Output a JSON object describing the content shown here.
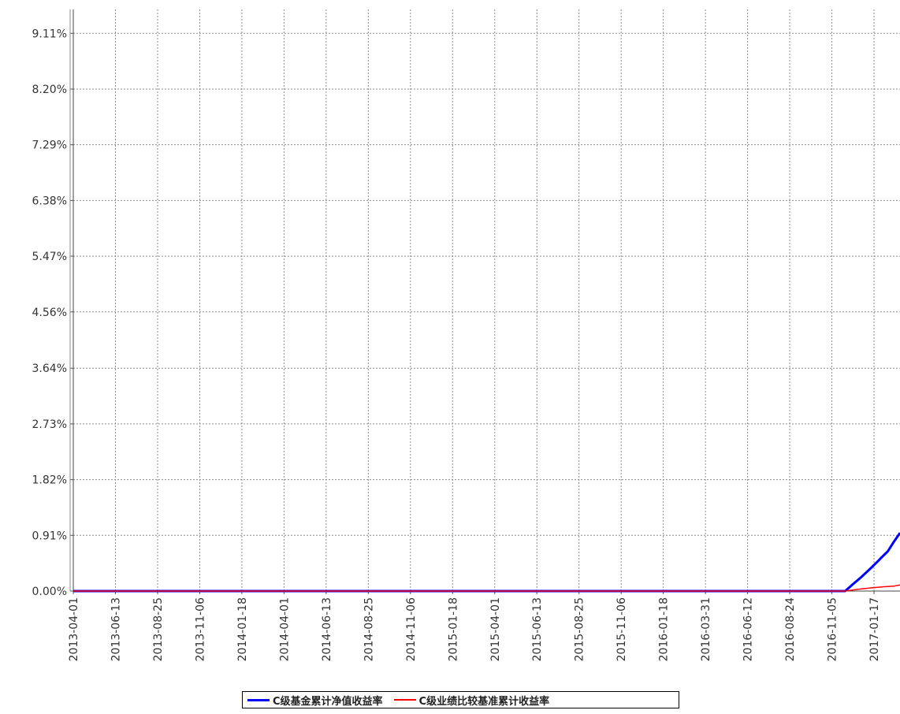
{
  "chart_data": {
    "type": "line",
    "title": "",
    "xlabel": "",
    "ylabel": "",
    "ylim": [
      0,
      9.5
    ],
    "y_ticks": [
      "0.00%",
      "0.91%",
      "1.82%",
      "2.73%",
      "3.64%",
      "4.56%",
      "5.47%",
      "6.38%",
      "7.29%",
      "8.20%",
      "9.11%"
    ],
    "y_tick_values": [
      0,
      0.91,
      1.82,
      2.73,
      3.64,
      4.56,
      5.47,
      6.38,
      7.29,
      8.2,
      9.11
    ],
    "x_ticks": [
      "2013-04-01",
      "2013-06-13",
      "2013-08-25",
      "2013-11-06",
      "2014-01-18",
      "2014-04-01",
      "2014-06-13",
      "2014-08-25",
      "2014-11-06",
      "2015-01-18",
      "2015-04-01",
      "2015-06-13",
      "2015-08-25",
      "2015-11-06",
      "2016-01-18",
      "2016-03-31",
      "2016-06-12",
      "2016-08-24",
      "2016-11-05",
      "2017-01-17"
    ],
    "xlim": [
      "2013-04-01",
      "2017-03-03"
    ],
    "grid": true,
    "legend_position": "bottom-center",
    "series": [
      {
        "name": "C级基金累计净值收益率",
        "color": "#0000ff",
        "x": [
          "2013-04-01",
          "2016-11-28",
          "2016-12-10",
          "2016-12-25",
          "2017-01-10",
          "2017-01-25",
          "2017-01-30",
          "2017-02-10",
          "2017-02-20",
          "2017-03-03"
        ],
        "y": [
          0.0,
          0.0,
          0.1,
          0.22,
          0.36,
          0.5,
          0.55,
          0.65,
          0.8,
          0.95
        ]
      },
      {
        "name": "C级业绩比较基准累计收益率",
        "color": "#ff0000",
        "x": [
          "2013-04-01",
          "2016-11-28",
          "2016-12-20",
          "2017-01-10",
          "2017-02-01",
          "2017-02-20",
          "2017-03-03"
        ],
        "y": [
          0.0,
          0.0,
          0.03,
          0.05,
          0.07,
          0.08,
          0.1
        ]
      }
    ]
  }
}
